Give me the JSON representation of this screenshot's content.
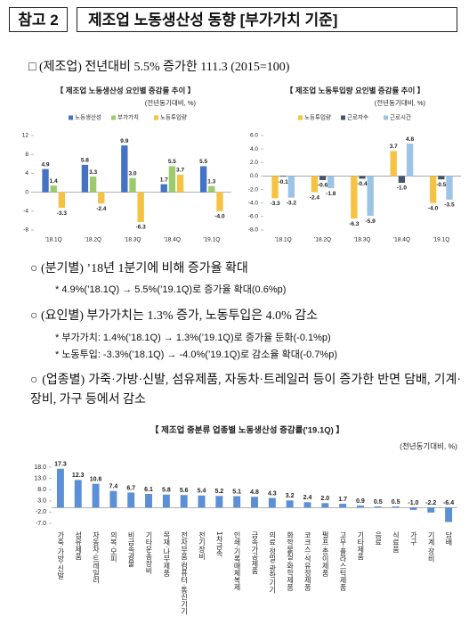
{
  "header": {
    "label": "참고 2",
    "title": "제조업 노동생산성 동향 [부가가치 기준]"
  },
  "summary": "□ (제조업) 전년대비 5.5% 증가한 111.3 (2015=100)",
  "charts": [
    {
      "type": "bar",
      "title": "【 제조업 노동생산성 요인별 증감률 추이 】",
      "unit": "(전년동기대비, %)",
      "categories": [
        "'18.1Q",
        "'18.2Q",
        "'18.3Q",
        "'18.4Q",
        "'19.1Q"
      ],
      "series": [
        {
          "name": "노동생산성",
          "color": "#4472c4",
          "values": [
            4.9,
            5.8,
            9.9,
            1.7,
            5.5
          ]
        },
        {
          "name": "부가가치",
          "color": "#9bcb6a",
          "values": [
            1.4,
            3.3,
            3.0,
            5.5,
            1.3
          ],
          "value_labels": [
            "1.4",
            "3.3",
            "3.0",
            "5.5",
            "1.3"
          ]
        },
        {
          "name": "노동투입량",
          "color": "#f5c242",
          "values": [
            -3.3,
            -2.4,
            -6.3,
            3.7,
            -4.0
          ],
          "value_labels": [
            "-3.3",
            "-2.4",
            "-6.3",
            "3.7",
            "-4.0"
          ]
        }
      ],
      "ylim": [
        -8,
        12
      ],
      "yticks": [
        12,
        8,
        4,
        0,
        -4,
        -8
      ],
      "grid": false
    },
    {
      "type": "bar",
      "title": "【 제조업 노동투입량 요인별 증감률 추이 】",
      "unit": "(전년동기대비, %)",
      "categories": [
        "'18.1Q",
        "'18.2Q",
        "'18.3Q",
        "'18.4Q",
        "'19.1Q"
      ],
      "series": [
        {
          "name": "노동투입량",
          "color": "#f5c242",
          "values": [
            -3.3,
            -2.4,
            -6.3,
            3.7,
            -4.0
          ],
          "value_labels": [
            "-3.3",
            "-2.4",
            "-6.3",
            "3.7",
            "-4.0"
          ]
        },
        {
          "name": "근로자수",
          "color": "#44546a",
          "values": [
            -0.1,
            -0.6,
            -0.4,
            -1.0,
            -0.5
          ],
          "value_labels": [
            "-0.1",
            "-0.6",
            "-0.4",
            "-1.0",
            "-0.5"
          ]
        },
        {
          "name": "근로시간",
          "color": "#9dc3e6",
          "values": [
            -3.2,
            -1.8,
            -5.9,
            4.8,
            -3.5
          ]
        }
      ],
      "ylim": [
        -8,
        6
      ],
      "yticks": [
        {
          "value": 6,
          "label": "6.0"
        },
        {
          "value": 4,
          "label": "4.0"
        },
        {
          "value": 2,
          "label": "2.0"
        },
        {
          "value": 0,
          "label": "0.0"
        },
        {
          "value": -2,
          "label": "-2.0"
        },
        {
          "value": -4,
          "label": "-4.0"
        },
        {
          "value": -6,
          "label": "-6.0"
        },
        {
          "value": -8,
          "label": "-8.0"
        }
      ],
      "grid": false
    },
    {
      "type": "bar",
      "title": "【 제조업 중분류 업종별 노동생산성 증감률('19.1Q) 】",
      "unit": "(전년동기대비, %)",
      "categories": [
        "가죽·가방·신발",
        "섬유제품",
        "자동차·트레일러",
        "의복·모피",
        "비금속광물",
        "기타운송장비",
        "목재·나무제품",
        "전자부품·컴퓨터·통신기기",
        "전기장비",
        "1차금속",
        "인쇄·기록매체복제",
        "금속가공제품",
        "의료·정밀·광학기기",
        "화학물질·화학제품",
        "코크스·석유정제품",
        "펄프·종이제품",
        "고무·플라스틱제품",
        "기타제품",
        "음료",
        "식료품",
        "가구",
        "기계·장비",
        "담배"
      ],
      "color": "#5b8fd6",
      "values": [
        17.3,
        12.3,
        10.6,
        7.4,
        6.7,
        6.1,
        5.8,
        5.6,
        5.4,
        5.2,
        5.1,
        4.8,
        4.3,
        3.2,
        2.4,
        2.0,
        1.7,
        0.9,
        0.5,
        0.5,
        -1.0,
        -2.2,
        -6.4
      ],
      "value_labels": [
        "17.3",
        "12.3",
        "10.6",
        "7.4",
        "6.7",
        "6.1",
        "5.8",
        "5.6",
        "5.4",
        "5.2",
        "5.1",
        "4.8",
        "4.3",
        "3.2",
        "2.4",
        "2.0",
        "1.7",
        "0.9",
        "0.5",
        "0.5",
        "-1.0",
        "-2.2",
        "-6.4"
      ],
      "ylim": [
        -7,
        18
      ],
      "yticks": [
        {
          "value": 18,
          "label": "18.0"
        },
        {
          "value": 13,
          "label": "13.0"
        },
        {
          "value": 8,
          "label": "8.0"
        },
        {
          "value": 3,
          "label": "3.0"
        },
        {
          "value": -2,
          "label": "-2.0"
        },
        {
          "value": -7,
          "label": "-7.0"
        }
      ],
      "grid": false
    }
  ],
  "sections": [
    {
      "title": "○ (분기별) ’18년 1분기에 비해 증가율 확대",
      "notes": [
        "* 4.9%(’18.1Q) → 5.5%(’19.1Q)로 증가율 확대(0.6%p)"
      ]
    },
    {
      "title": "○ (요인별) 부가가치는 1.3% 증가, 노동투입은 4.0% 감소",
      "notes": [
        "* 부가가치: 1.4%(’18.1Q) → 1.3%(’19.1Q)로 증가율 둔화(-0.1%p)",
        "* 노동투입: -3.3%(’18.1Q) → -4.0%(’19.1Q)로 감소율 확대(-0.7%p)"
      ]
    },
    {
      "title": "○ (업종별) 가죽·가방·신발, 섬유제품, 자동차·트레일러 등이 증가한 반면 담배, 기계·장비, 가구 등에서 감소",
      "notes": []
    }
  ]
}
